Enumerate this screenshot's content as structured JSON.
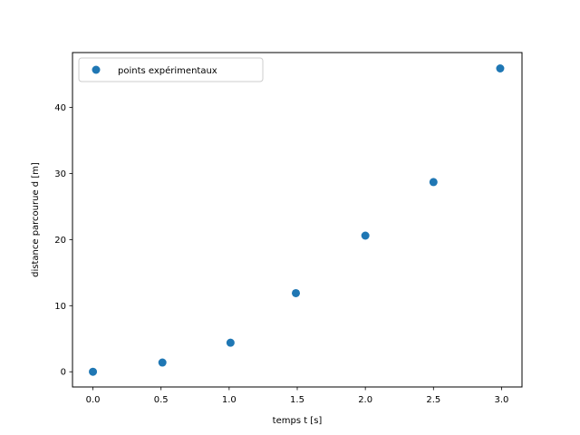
{
  "chart_data": {
    "type": "scatter",
    "xlabel": "temps t [s]",
    "ylabel": "distance parcourue d [m]",
    "xlim": [
      -0.15,
      3.15
    ],
    "ylim": [
      -2.3,
      48.3
    ],
    "xticks": [
      0.0,
      0.5,
      1.0,
      1.5,
      2.0,
      2.5,
      3.0
    ],
    "xtick_labels": [
      "0.0",
      "0.5",
      "1.0",
      "1.5",
      "2.0",
      "2.5",
      "3.0"
    ],
    "yticks": [
      0,
      10,
      20,
      30,
      40
    ],
    "ytick_labels": [
      "0",
      "10",
      "20",
      "30",
      "40"
    ],
    "grid": false,
    "legend_position": "upper-left",
    "series": [
      {
        "name": "points expérimentaux",
        "color": "#1f77b4",
        "x": [
          0.0,
          0.51,
          1.01,
          1.49,
          2.0,
          2.5,
          2.99
        ],
        "y": [
          0.0,
          1.4,
          4.4,
          11.9,
          20.6,
          28.7,
          45.9
        ]
      }
    ]
  }
}
